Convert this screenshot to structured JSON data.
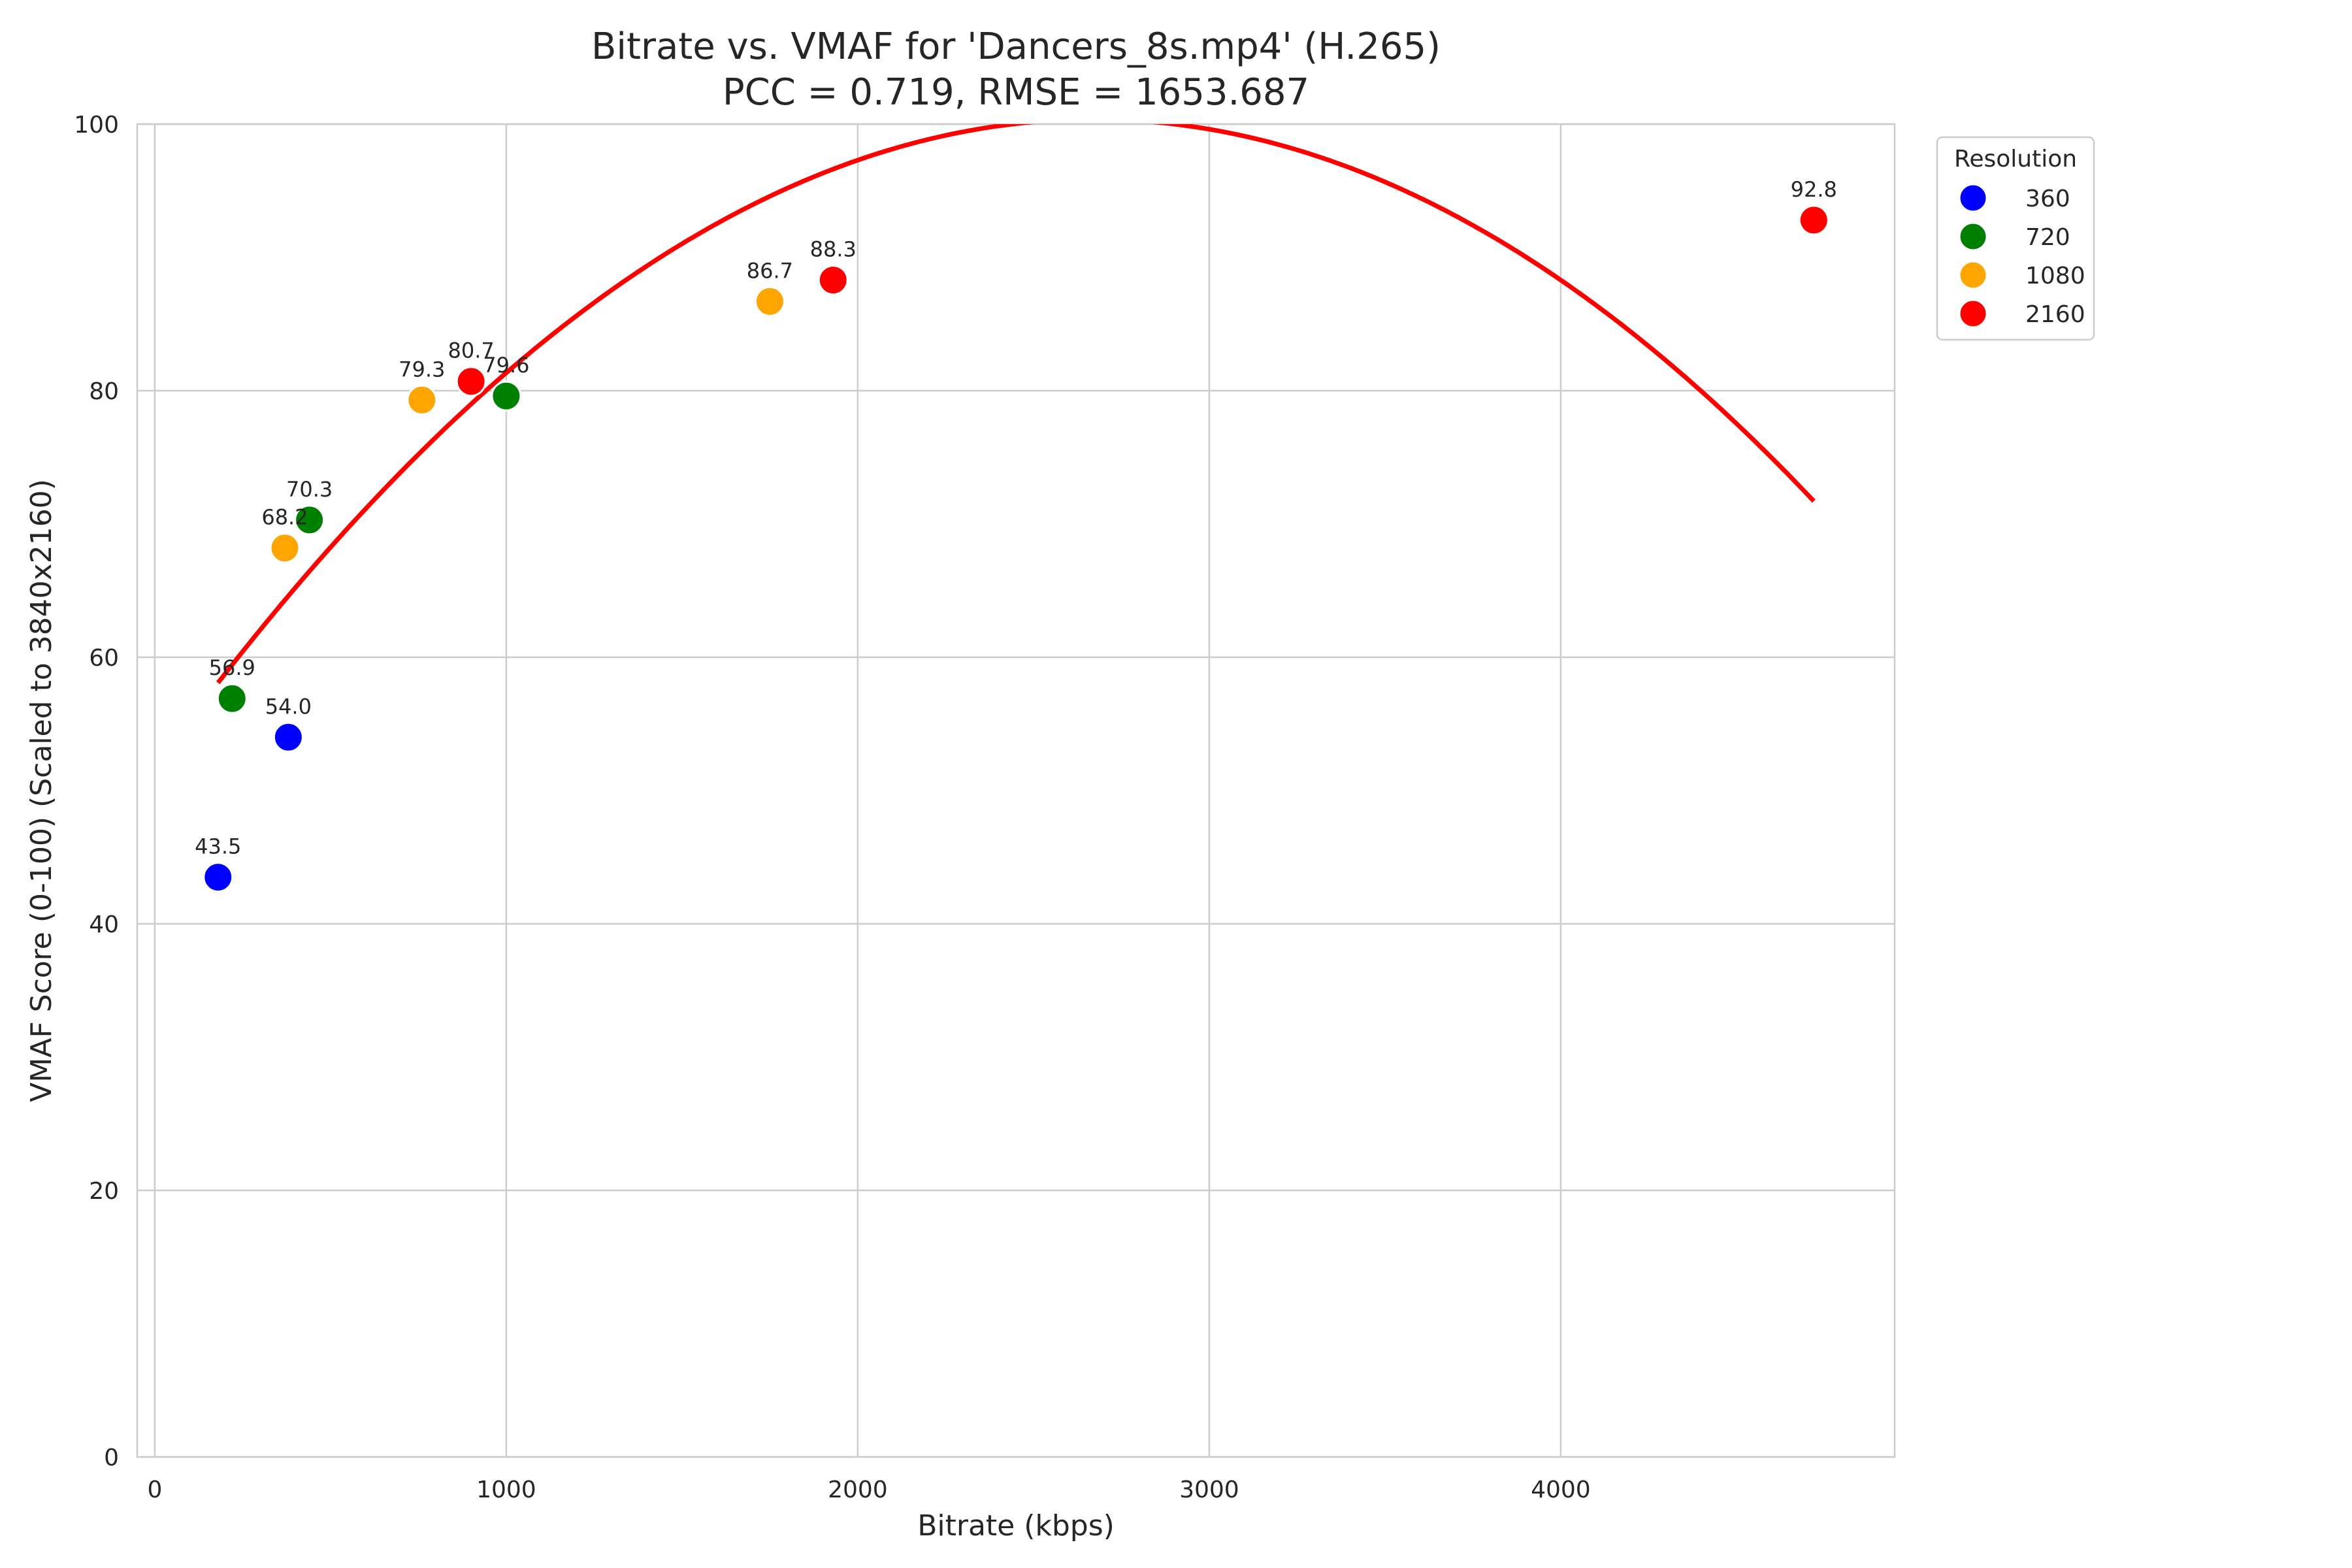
{
  "chart_data": {
    "type": "scatter",
    "title_line1": "Bitrate vs. VMAF for 'Dancers_8s.mp4' (H.265)",
    "title_line2": "PCC = 0.719, RMSE = 1653.687",
    "xlabel": "Bitrate (kbps)",
    "ylabel": "VMAF Score (0-100) (Scaled to 3840x2160)",
    "xlim": [
      -50,
      4950
    ],
    "ylim": [
      0,
      100
    ],
    "x_ticks": [
      0,
      1000,
      2000,
      3000,
      4000
    ],
    "y_ticks": [
      0,
      20,
      40,
      60,
      80,
      100
    ],
    "grid": true,
    "legend": {
      "title": "Resolution",
      "placement": "outside-top-right",
      "entries": [
        {
          "name": "360",
          "color": "#0000ff"
        },
        {
          "name": "720",
          "color": "#008000"
        },
        {
          "name": "1080",
          "color": "#ffa500"
        },
        {
          "name": "2160",
          "color": "#ff0000"
        }
      ]
    },
    "series": [
      {
        "name": "360",
        "color": "#0000ff",
        "points": [
          {
            "x": 180,
            "y": 43.5,
            "label": "43.5"
          },
          {
            "x": 380,
            "y": 54.0,
            "label": "54.0"
          }
        ]
      },
      {
        "name": "720",
        "color": "#008000",
        "points": [
          {
            "x": 220,
            "y": 56.9,
            "label": "56.9"
          },
          {
            "x": 440,
            "y": 70.3,
            "label": "70.3"
          },
          {
            "x": 1000,
            "y": 79.6,
            "label": "79.6"
          }
        ]
      },
      {
        "name": "1080",
        "color": "#ffa500",
        "points": [
          {
            "x": 370,
            "y": 68.2,
            "label": "68.2"
          },
          {
            "x": 760,
            "y": 79.3,
            "label": "79.3"
          },
          {
            "x": 1750,
            "y": 86.7,
            "label": "86.7"
          }
        ]
      },
      {
        "name": "2160",
        "color": "#ff0000",
        "points": [
          {
            "x": 900,
            "y": 80.7,
            "label": "80.7"
          },
          {
            "x": 1930,
            "y": 88.3,
            "label": "88.3"
          },
          {
            "x": 4720,
            "y": 92.8,
            "label": "92.8"
          }
        ]
      }
    ],
    "fit_curve": {
      "color": "#ff0000",
      "x_range": [
        180,
        4720
      ],
      "coefficients": [
        51.75,
        0.03641,
        -6.818e-06
      ]
    }
  }
}
